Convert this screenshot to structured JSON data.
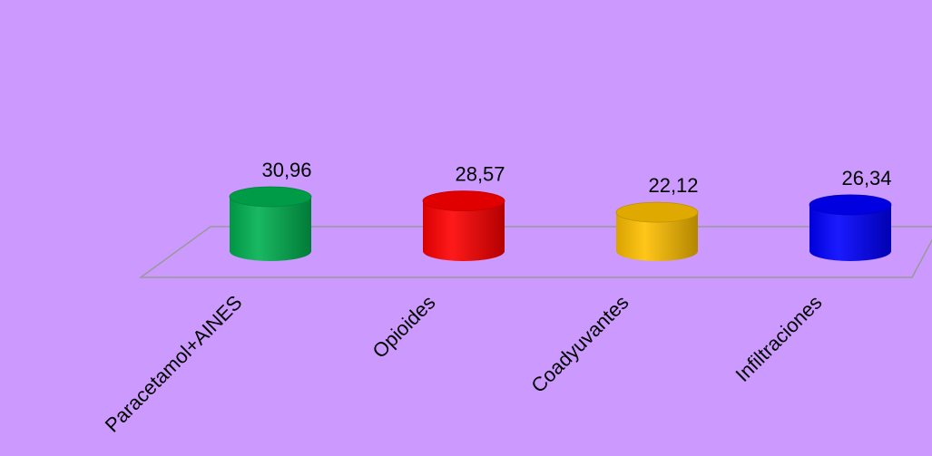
{
  "chart_data": {
    "type": "bar",
    "style": "3d-cylinder",
    "categories": [
      "Paracetamol+AINES",
      "Opioides",
      "Coadyuvantes",
      "Infiltraciones"
    ],
    "values": [
      30.96,
      28.57,
      22.12,
      26.34
    ],
    "value_labels": [
      "30,96",
      "28,57",
      "22,12",
      "26,34"
    ],
    "colors": [
      "#00b050",
      "#ff0000",
      "#ffc000",
      "#0000ff"
    ],
    "title": "",
    "xlabel": "",
    "ylabel": "",
    "ylim": [
      0,
      40
    ],
    "grid": false,
    "legend": "none",
    "background": "#cc99ff"
  }
}
